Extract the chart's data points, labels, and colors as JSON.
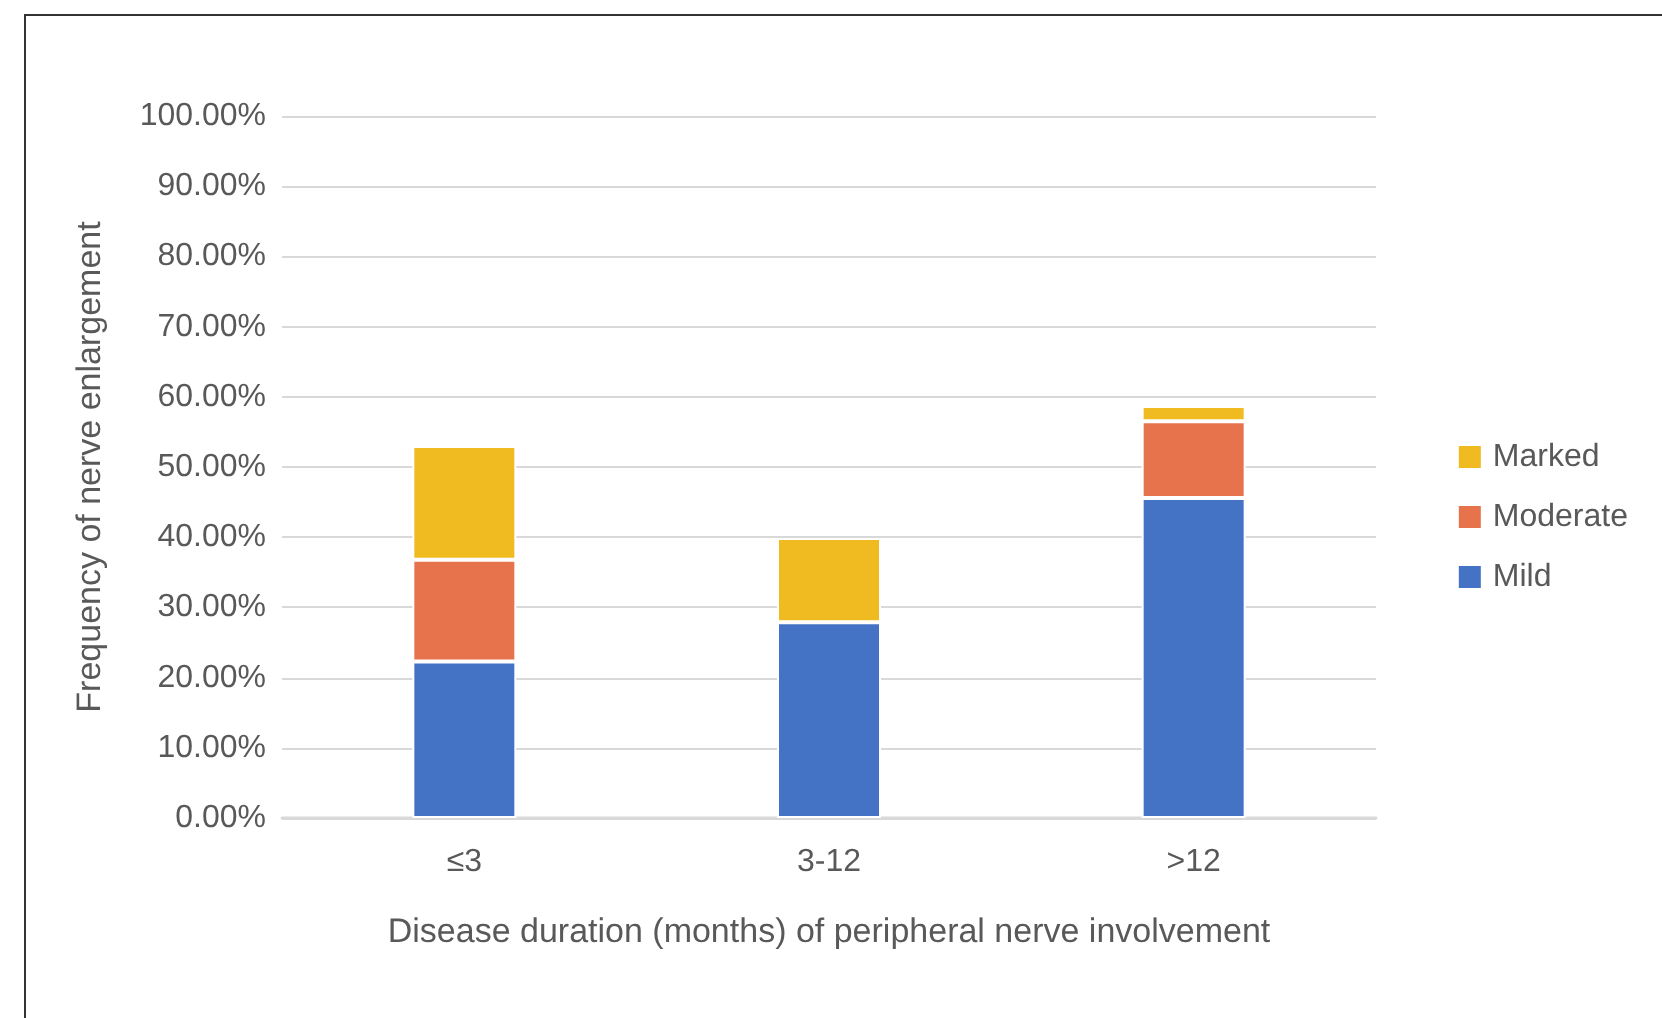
{
  "chart_data": {
    "type": "bar",
    "stacked": true,
    "xlabel": "Disease duration (months) of peripheral nerve involvement",
    "ylabel": "Frequency of nerve enlargement",
    "categories": [
      "≤3",
      "3-12",
      ">12"
    ],
    "series": [
      {
        "name": "Mild",
        "color": "#4472c4",
        "values": [
          22.3,
          27.9,
          45.6
        ]
      },
      {
        "name": "Moderate",
        "color": "#e7734c",
        "values": [
          14.5,
          0,
          10.9
        ]
      },
      {
        "name": "Marked",
        "color": "#f0bb20",
        "values": [
          16.2,
          12.0,
          2.2
        ]
      }
    ],
    "ylim": [
      0,
      100
    ],
    "yticks": [
      {
        "value": 0,
        "label": "0.00%"
      },
      {
        "value": 10,
        "label": "10.00%"
      },
      {
        "value": 20,
        "label": "20.00%"
      },
      {
        "value": 30,
        "label": "30.00%"
      },
      {
        "value": 40,
        "label": "40.00%"
      },
      {
        "value": 50,
        "label": "50.00%"
      },
      {
        "value": 60,
        "label": "60.00%"
      },
      {
        "value": 70,
        "label": "70.00%"
      },
      {
        "value": 80,
        "label": "80.00%"
      },
      {
        "value": 90,
        "label": "90.00%"
      },
      {
        "value": 100,
        "label": "100.00%"
      }
    ],
    "grid": "y",
    "legend": "right"
  }
}
